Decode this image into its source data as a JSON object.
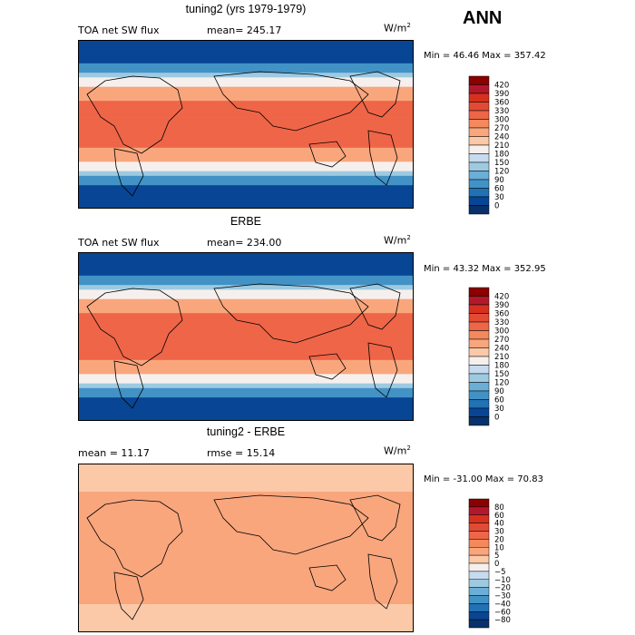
{
  "season": "ANN",
  "chart_data": [
    {
      "type": "heatmap",
      "title": "tuning2 (yrs 1979-1979)",
      "variable": "TOA net SW flux",
      "stat_label": "mean= 245.17",
      "units": "W/m",
      "units_exp": "2",
      "range_text": "Min =  46.46 Max = 357.42",
      "min": 46.46,
      "max": 357.42,
      "mean": 245.17,
      "colorbar_levels": [
        "420",
        "390",
        "360",
        "330",
        "300",
        "270",
        "240",
        "210",
        "180",
        "150",
        "120",
        "90",
        "60",
        "30",
        "0"
      ],
      "colorbar_colors": [
        "#8b0000",
        "#b2182b",
        "#d7301f",
        "#e34a33",
        "#ef6548",
        "#f4895d",
        "#f9a67d",
        "#fcc9a8",
        "#f5f0ee",
        "#c6dbef",
        "#9ecae1",
        "#6baed6",
        "#4292c6",
        "#2171b5",
        "#084594",
        "#08306b"
      ]
    },
    {
      "type": "heatmap",
      "title": "ERBE",
      "variable": "TOA net SW flux",
      "stat_label": "mean= 234.00",
      "units": "W/m",
      "units_exp": "2",
      "range_text": "Min =  43.32 Max = 352.95",
      "min": 43.32,
      "max": 352.95,
      "mean": 234.0,
      "colorbar_levels": [
        "420",
        "390",
        "360",
        "330",
        "300",
        "270",
        "240",
        "210",
        "180",
        "150",
        "120",
        "90",
        "60",
        "30",
        "0"
      ],
      "colorbar_colors": [
        "#8b0000",
        "#b2182b",
        "#d7301f",
        "#e34a33",
        "#ef6548",
        "#f4895d",
        "#f9a67d",
        "#fcc9a8",
        "#f5f0ee",
        "#c6dbef",
        "#9ecae1",
        "#6baed6",
        "#4292c6",
        "#2171b5",
        "#084594",
        "#08306b"
      ]
    },
    {
      "type": "heatmap",
      "title": "tuning2 - ERBE",
      "variable": "mean =  11.17",
      "stat_label": "rmse =  15.14",
      "units": "W/m",
      "units_exp": "2",
      "range_text": "Min = -31.00 Max =  70.83",
      "min": -31.0,
      "max": 70.83,
      "mean": 11.17,
      "rmse": 15.14,
      "colorbar_levels": [
        "80",
        "60",
        "40",
        "30",
        "20",
        "10",
        "5",
        "0",
        "−5",
        "−10",
        "−20",
        "−30",
        "−40",
        "−60",
        "−80"
      ],
      "colorbar_colors": [
        "#8b0000",
        "#b2182b",
        "#d7301f",
        "#e34a33",
        "#ef6548",
        "#f4895d",
        "#f9a67d",
        "#fcc9a8",
        "#f5f0ee",
        "#c6dbef",
        "#9ecae1",
        "#6baed6",
        "#4292c6",
        "#2171b5",
        "#084594",
        "#08306b"
      ]
    }
  ]
}
